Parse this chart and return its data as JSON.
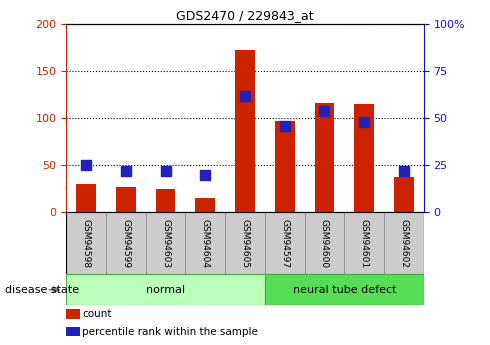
{
  "title": "GDS2470 / 229843_at",
  "samples": [
    "GSM94598",
    "GSM94599",
    "GSM94603",
    "GSM94604",
    "GSM94605",
    "GSM94597",
    "GSM94600",
    "GSM94601",
    "GSM94602"
  ],
  "counts": [
    30,
    27,
    25,
    15,
    172,
    97,
    116,
    115,
    37
  ],
  "percentiles": [
    25,
    22,
    22,
    20,
    62,
    46,
    54,
    48,
    22
  ],
  "groups": [
    {
      "label": "normal",
      "start": 0,
      "end": 5,
      "color": "#bbffbb",
      "edgecolor": "#44aa44"
    },
    {
      "label": "neural tube defect",
      "start": 5,
      "end": 9,
      "color": "#55dd55",
      "edgecolor": "#44aa44"
    }
  ],
  "left_ylim": [
    0,
    200
  ],
  "right_ylim": [
    0,
    100
  ],
  "left_yticks": [
    0,
    50,
    100,
    150,
    200
  ],
  "right_yticks": [
    0,
    25,
    50,
    75,
    100
  ],
  "right_yticklabels": [
    "0",
    "25",
    "50",
    "75",
    "100%"
  ],
  "left_color": "#cc2200",
  "right_color": "#1111cc",
  "bar_color": "#cc2200",
  "dot_color": "#2222bb",
  "bar_width": 0.5,
  "dot_size": 45,
  "grid_color": "#000000",
  "bg_color": "#ffffff",
  "tick_bg": "#cccccc",
  "disease_state_label": "disease state",
  "legend_count": "count",
  "legend_pct": "percentile rank within the sample",
  "title_fontsize": 9,
  "label_fontsize": 6.5,
  "group_fontsize": 8,
  "legend_fontsize": 7.5,
  "axis_fontsize": 8
}
